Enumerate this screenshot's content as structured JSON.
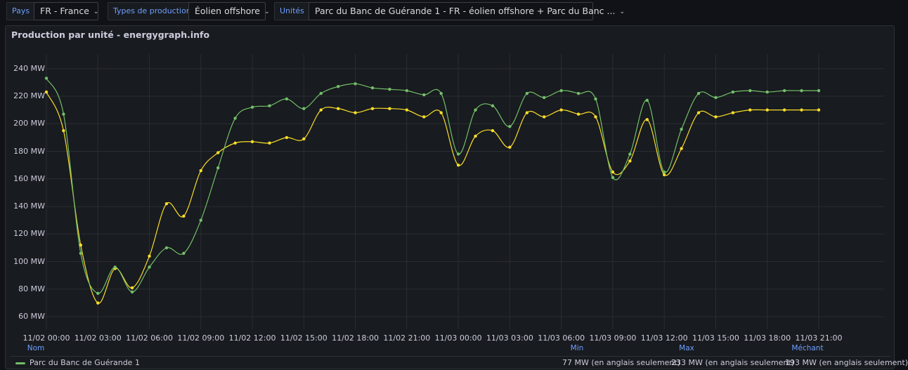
{
  "filters": {
    "country_label": "Pays",
    "country_value": "FR - France",
    "type_label": "Types de production",
    "type_value": "Éolien offshore",
    "units_label": "Unités",
    "units_value": "Parc du Banc de Guérande 1 - FR - éolien offshore + Parc du Banc ..."
  },
  "panel": {
    "title": "Production par unité - energygraph.info"
  },
  "stats": {
    "name_label": "Nom",
    "min_label": "Min",
    "max_label": "Max",
    "mean_label": "Méchant"
  },
  "legend": {
    "name": "Parc du Banc de Guérande 1",
    "min": "77 MW (en anglais seulement)",
    "max": "233 MW (en anglais seulement)",
    "mean": "193 MW (en anglais seulement)"
  },
  "colors": {
    "green": "#73bf69",
    "yellow": "#fade2a",
    "accent": "#6e9fff"
  },
  "chart_data": {
    "type": "line",
    "title": "Production par unité - energygraph.info",
    "ylim": [
      55,
      248
    ],
    "yticks": [
      "240 MW",
      "220 MW",
      "200 MW",
      "180 MW",
      "160 MW",
      "140 MW",
      "120 MW",
      "100 MW",
      "80 MW",
      "60 MW"
    ],
    "ytick_values": [
      240,
      220,
      200,
      180,
      160,
      140,
      120,
      100,
      80,
      60
    ],
    "xticks": [
      "11/02 00:00",
      "11/02 03:00",
      "11/02 06:00",
      "11/02 09:00",
      "11/02 12:00",
      "11/02 15:00",
      "11/02 18:00",
      "11/02 21:00",
      "11/03 00:00",
      "11/03 03:00",
      "11/03 06:00",
      "11/03 09:00",
      "11/03 12:00",
      "11/03 15:00",
      "11/03 18:00",
      "11/03 21:00"
    ],
    "xtick_hours": [
      0,
      3,
      6,
      9,
      12,
      15,
      18,
      21,
      24,
      27,
      30,
      33,
      36,
      39,
      42,
      45
    ],
    "x_hours": [
      0,
      1,
      2,
      3,
      4,
      5,
      6,
      7,
      8,
      9,
      10,
      11,
      12,
      13,
      14,
      15,
      16,
      17,
      18,
      19,
      20,
      21,
      22,
      23,
      24,
      25,
      26,
      27,
      28,
      29,
      30,
      31,
      32,
      33,
      34,
      35,
      36,
      37,
      38,
      39,
      40,
      41,
      42,
      43,
      44,
      45
    ],
    "series": [
      {
        "name": "Parc du Banc de Guérande 1",
        "color": "#73bf69",
        "values": [
          233,
          207,
          106,
          77,
          96,
          78,
          96,
          110,
          106,
          130,
          168,
          204,
          212,
          213,
          218,
          211,
          222,
          227,
          229,
          226,
          225,
          224,
          221,
          222,
          178,
          210,
          213,
          198,
          222,
          219,
          224,
          222,
          218,
          161,
          178,
          217,
          165,
          196,
          222,
          219,
          223,
          224,
          223,
          224,
          224,
          224
        ]
      },
      {
        "name": "",
        "color": "#fade2a",
        "values": [
          223,
          195,
          112,
          70,
          95,
          81,
          104,
          142,
          133,
          166,
          179,
          186,
          187,
          186,
          190,
          189,
          210,
          211,
          208,
          211,
          211,
          210,
          205,
          208,
          170,
          191,
          195,
          183,
          208,
          205,
          210,
          207,
          205,
          165,
          173,
          203,
          163,
          182,
          208,
          205,
          208,
          210,
          210,
          210,
          210,
          210
        ]
      }
    ]
  }
}
